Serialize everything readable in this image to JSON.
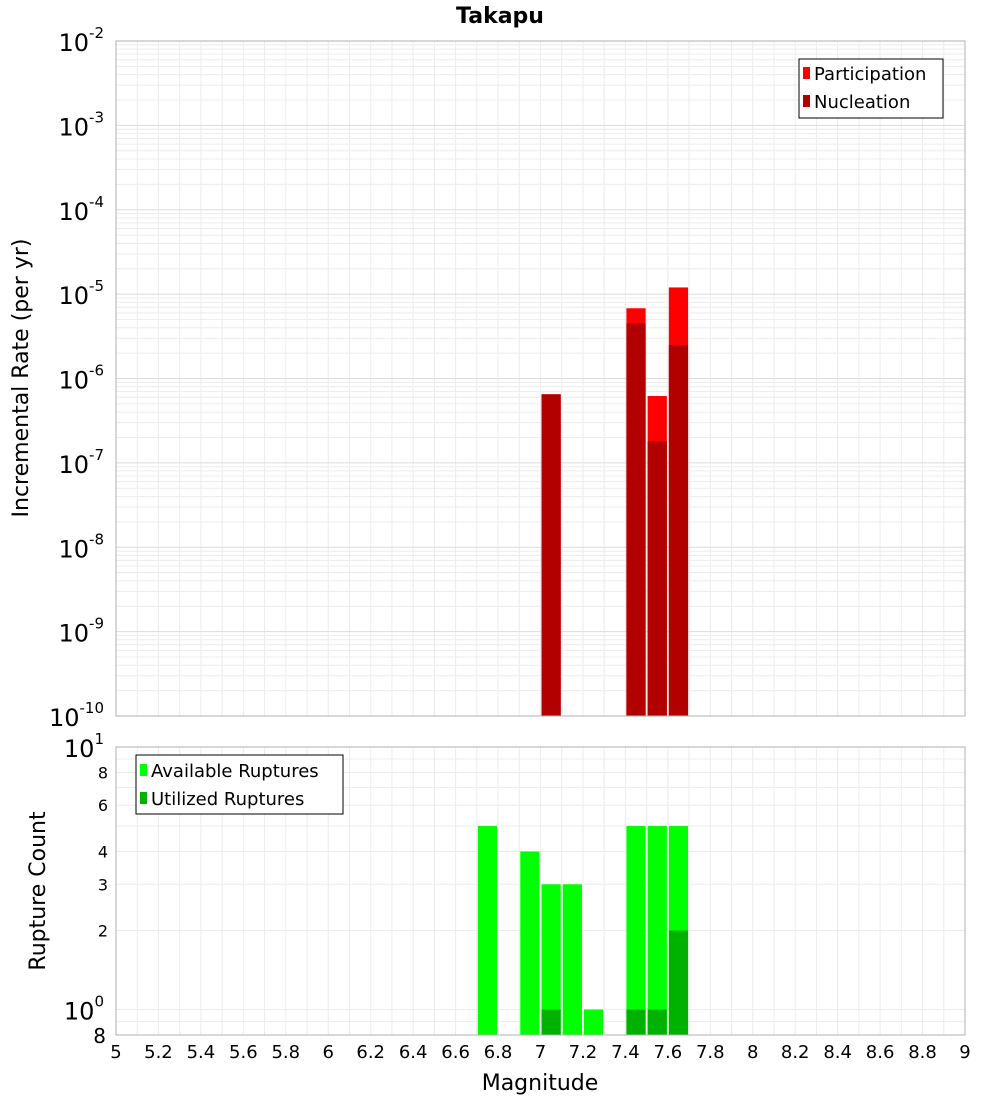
{
  "chart_data": [
    {
      "type": "bar",
      "title": "Takapu",
      "ylabel": "Incremental Rate (per yr)",
      "yscale": "log",
      "ylim": [
        1e-10,
        0.01
      ],
      "xlim": [
        5,
        9
      ],
      "grid": true,
      "legend_position": "top-right",
      "bar_width": 0.1,
      "y_tick_labels": [
        {
          "base": "10",
          "exp": "-2"
        },
        {
          "base": "10",
          "exp": "-3"
        },
        {
          "base": "10",
          "exp": "-4"
        },
        {
          "base": "10",
          "exp": "-5"
        },
        {
          "base": "10",
          "exp": "-6"
        },
        {
          "base": "10",
          "exp": "-7"
        },
        {
          "base": "10",
          "exp": "-8"
        },
        {
          "base": "10",
          "exp": "-9"
        },
        {
          "base": "10",
          "exp": "-10"
        }
      ],
      "series": [
        {
          "name": "Participation",
          "color": "#ff0000",
          "x": [
            7.05,
            7.45,
            7.55,
            7.65
          ],
          "values": [
            6.5e-07,
            6.8e-06,
            6.2e-07,
            1.2e-05
          ]
        },
        {
          "name": "Nucleation",
          "color": "#b20000",
          "x": [
            7.05,
            7.45,
            7.55,
            7.65
          ],
          "values": [
            6.5e-07,
            4.5e-06,
            1.8e-07,
            2.5e-06
          ]
        }
      ]
    },
    {
      "type": "bar",
      "xlabel": "Magnitude",
      "ylabel": "Rupture Count",
      "yscale": "log",
      "ylim": [
        0.8,
        10
      ],
      "xlim": [
        5,
        9
      ],
      "grid": true,
      "legend_position": "top-left",
      "bar_width": 0.1,
      "x_tick_labels": [
        "5",
        "5.2",
        "5.4",
        "5.6",
        "5.8",
        "6",
        "6.2",
        "6.4",
        "6.6",
        "6.8",
        "7",
        "7.2",
        "7.4",
        "7.6",
        "7.8",
        "8",
        "8.2",
        "8.4",
        "8.6",
        "8.8",
        "9"
      ],
      "y_minor_tick_labels": [
        {
          "label": "8",
          "value": 8
        },
        {
          "label": "6",
          "value": 6
        },
        {
          "label": "4",
          "value": 4
        },
        {
          "label": "3",
          "value": 3
        },
        {
          "label": "2",
          "value": 2
        }
      ],
      "y_major_tick_labels": [
        {
          "base": "10",
          "exp": "1",
          "value": 10
        },
        {
          "base": "10",
          "exp": "0",
          "value": 1
        }
      ],
      "y_bottom_label": "8",
      "series": [
        {
          "name": "Available Ruptures",
          "color": "#00ff00",
          "x": [
            6.75,
            6.95,
            7.05,
            7.15,
            7.25,
            7.45,
            7.55,
            7.65
          ],
          "values": [
            5,
            4,
            3,
            3,
            1,
            5,
            5,
            5
          ]
        },
        {
          "name": "Utilized Ruptures",
          "color": "#00b200",
          "x": [
            7.05,
            7.45,
            7.55,
            7.65
          ],
          "values": [
            1,
            1,
            1,
            2
          ]
        }
      ]
    }
  ]
}
